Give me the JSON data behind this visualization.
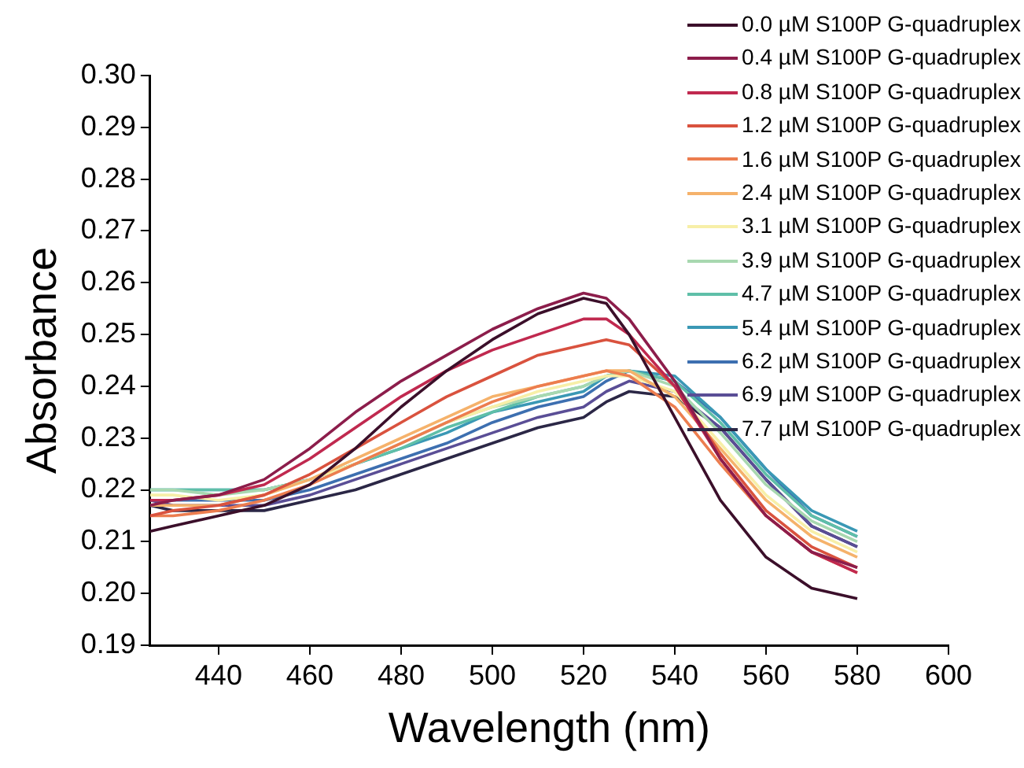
{
  "chart_data": {
    "type": "line",
    "xlabel": "Wavelength (nm)",
    "ylabel": "Absorbance",
    "x": [
      425,
      430,
      440,
      450,
      460,
      470,
      480,
      490,
      500,
      510,
      520,
      525,
      530,
      540,
      550,
      560,
      570,
      580
    ],
    "xlim": [
      425,
      600
    ],
    "xticks": [
      440,
      460,
      480,
      500,
      520,
      540,
      560,
      580,
      600
    ],
    "ylim": [
      0.19,
      0.3
    ],
    "yticks": [
      {
        "value": 0.19,
        "label": "0.19"
      },
      {
        "value": 0.2,
        "label": "0.20"
      },
      {
        "value": 0.21,
        "label": "0.21"
      },
      {
        "value": 0.22,
        "label": "0.22"
      },
      {
        "value": 0.23,
        "label": "0.23"
      },
      {
        "value": 0.24,
        "label": "0.24"
      },
      {
        "value": 0.25,
        "label": "0.25"
      },
      {
        "value": 0.26,
        "label": "0.26"
      },
      {
        "value": 0.27,
        "label": "0.27"
      },
      {
        "value": 0.28,
        "label": "0.28"
      },
      {
        "value": 0.29,
        "label": "0.29"
      },
      {
        "value": 0.3,
        "label": "0.30"
      }
    ],
    "grid": false,
    "legend": "top right",
    "marker": "none",
    "line_style": "solid",
    "series": [
      {
        "name": "0.0 µM S100P G-quadruplex",
        "color": "#3b0f2a",
        "values": [
          0.212,
          0.213,
          0.215,
          0.217,
          0.221,
          0.228,
          0.236,
          0.243,
          0.249,
          0.254,
          0.257,
          0.256,
          0.25,
          0.234,
          0.218,
          0.207,
          0.201,
          0.199
        ]
      },
      {
        "name": "0.4 µM S100P G-quadruplex",
        "color": "#8c1d4b",
        "values": [
          0.217,
          0.218,
          0.219,
          0.222,
          0.228,
          0.235,
          0.241,
          0.246,
          0.251,
          0.255,
          0.258,
          0.257,
          0.253,
          0.241,
          0.226,
          0.215,
          0.208,
          0.205
        ]
      },
      {
        "name": "0.8 µM S100P G-quadruplex",
        "color": "#c0294f",
        "values": [
          0.218,
          0.218,
          0.219,
          0.221,
          0.226,
          0.232,
          0.238,
          0.243,
          0.247,
          0.25,
          0.253,
          0.253,
          0.25,
          0.24,
          0.226,
          0.215,
          0.208,
          0.204
        ]
      },
      {
        "name": "1.2 µM S100P G-quadruplex",
        "color": "#d9523e",
        "values": [
          0.215,
          0.216,
          0.217,
          0.219,
          0.223,
          0.228,
          0.233,
          0.238,
          0.242,
          0.246,
          0.248,
          0.249,
          0.248,
          0.24,
          0.227,
          0.216,
          0.209,
          0.205
        ]
      },
      {
        "name": "1.6 µM S100P G-quadruplex",
        "color": "#ec7d4f",
        "values": [
          0.215,
          0.215,
          0.216,
          0.218,
          0.221,
          0.225,
          0.229,
          0.233,
          0.237,
          0.24,
          0.242,
          0.243,
          0.242,
          0.236,
          0.225,
          0.215,
          0.208,
          0.204
        ]
      },
      {
        "name": "2.4 µM S100P G-quadruplex",
        "color": "#f5b26b",
        "values": [
          0.217,
          0.217,
          0.217,
          0.219,
          0.222,
          0.226,
          0.23,
          0.234,
          0.238,
          0.24,
          0.242,
          0.243,
          0.243,
          0.238,
          0.228,
          0.218,
          0.211,
          0.207
        ]
      },
      {
        "name": "3.1 µM S100P G-quadruplex",
        "color": "#f7efa8",
        "values": [
          0.219,
          0.219,
          0.218,
          0.219,
          0.222,
          0.225,
          0.229,
          0.233,
          0.236,
          0.239,
          0.241,
          0.242,
          0.242,
          0.239,
          0.229,
          0.219,
          0.212,
          0.208
        ]
      },
      {
        "name": "3.9 µM S100P G-quadruplex",
        "color": "#a8d8b0",
        "values": [
          0.22,
          0.22,
          0.219,
          0.22,
          0.222,
          0.225,
          0.229,
          0.233,
          0.236,
          0.238,
          0.24,
          0.242,
          0.243,
          0.24,
          0.231,
          0.221,
          0.214,
          0.21
        ]
      },
      {
        "name": "4.7 µM S100P G-quadruplex",
        "color": "#5fbfa8",
        "values": [
          0.22,
          0.22,
          0.22,
          0.22,
          0.222,
          0.225,
          0.228,
          0.232,
          0.235,
          0.238,
          0.24,
          0.242,
          0.243,
          0.241,
          0.233,
          0.223,
          0.215,
          0.211
        ]
      },
      {
        "name": "5.4 µM S100P G-quadruplex",
        "color": "#3a98b5",
        "values": [
          0.22,
          0.22,
          0.22,
          0.22,
          0.222,
          0.225,
          0.228,
          0.231,
          0.235,
          0.237,
          0.239,
          0.242,
          0.243,
          0.242,
          0.234,
          0.224,
          0.216,
          0.212
        ]
      },
      {
        "name": "6.2 µM S100P G-quadruplex",
        "color": "#3d6fb0",
        "values": [
          0.218,
          0.218,
          0.218,
          0.218,
          0.22,
          0.223,
          0.226,
          0.229,
          0.233,
          0.236,
          0.238,
          0.241,
          0.243,
          0.241,
          0.234,
          0.224,
          0.215,
          0.211
        ]
      },
      {
        "name": "6.9 µM S100P G-quadruplex",
        "color": "#5a4e96",
        "values": [
          0.218,
          0.217,
          0.217,
          0.217,
          0.219,
          0.222,
          0.225,
          0.228,
          0.231,
          0.234,
          0.236,
          0.239,
          0.241,
          0.239,
          0.232,
          0.222,
          0.213,
          0.209
        ]
      },
      {
        "name": "7.7 µM S100P G-quadruplex",
        "color": "#2b2746",
        "values": [
          0.217,
          0.216,
          0.216,
          0.216,
          0.218,
          0.22,
          0.223,
          0.226,
          0.229,
          0.232,
          0.234,
          0.237,
          0.239,
          0.238,
          0.232,
          0.222,
          0.213,
          0.209
        ]
      }
    ]
  }
}
